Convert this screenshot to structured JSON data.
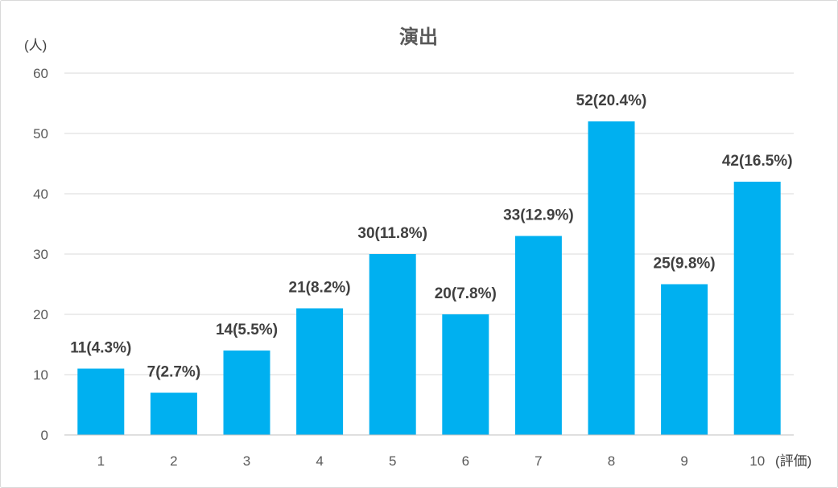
{
  "chart_data": {
    "type": "bar",
    "title": "演出",
    "ylabel": "(人)",
    "xlabel": "(評価)",
    "categories": [
      "1",
      "2",
      "3",
      "4",
      "5",
      "6",
      "7",
      "8",
      "9",
      "10"
    ],
    "values": [
      11,
      7,
      14,
      21,
      30,
      20,
      33,
      52,
      25,
      42
    ],
    "data_labels": [
      "11(4.3%)",
      "7(2.7%)",
      "14(5.5%)",
      "21(8.2%)",
      "30(11.8%)",
      "20(7.8%)",
      "33(12.9%)",
      "52(20.4%)",
      "25(9.8%)",
      "42(16.5%)"
    ],
    "ylim": [
      0,
      60
    ],
    "yticks": [
      0,
      10,
      20,
      30,
      40,
      50,
      60
    ],
    "grid": true,
    "legend": "none"
  },
  "colors": {
    "bar": "#00B0F0",
    "title": "#595959",
    "tick_text": "#595959",
    "data_label_text": "#404040",
    "gridline": "#D9D9D9",
    "axis": "#BFBFBF"
  }
}
